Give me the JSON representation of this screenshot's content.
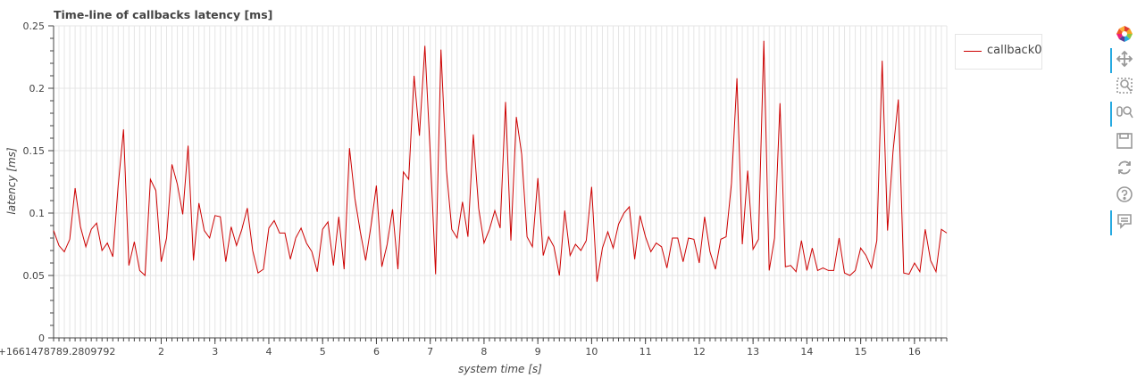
{
  "chart_data": {
    "type": "line",
    "title": "Time-line of callbacks latency [ms]",
    "xlabel": "system time [s]",
    "ylabel": "latency [ms]",
    "xlim": [
      0,
      16.6
    ],
    "ylim": [
      0,
      0.25
    ],
    "x_offset_label": "0+1661478789.2809792",
    "x_ticks": [
      2,
      3,
      4,
      5,
      6,
      7,
      8,
      9,
      10,
      11,
      12,
      13,
      14,
      15,
      16
    ],
    "y_ticks": [
      0,
      0.05,
      0.1,
      0.15,
      0.2,
      0.25
    ],
    "grid": true,
    "legend_position": "outside-right",
    "series": [
      {
        "name": "callback0",
        "color": "#cc0000",
        "x": [
          0,
          0.1,
          0.2,
          0.3,
          0.4,
          0.5,
          0.6,
          0.7,
          0.8,
          0.9,
          1.0,
          1.1,
          1.2,
          1.3,
          1.4,
          1.5,
          1.6,
          1.7,
          1.8,
          1.9,
          2.0,
          2.1,
          2.2,
          2.3,
          2.4,
          2.5,
          2.6,
          2.7,
          2.8,
          2.9,
          3.0,
          3.1,
          3.2,
          3.3,
          3.4,
          3.5,
          3.6,
          3.7,
          3.8,
          3.9,
          4.0,
          4.1,
          4.2,
          4.3,
          4.4,
          4.5,
          4.6,
          4.7,
          4.8,
          4.9,
          5.0,
          5.1,
          5.2,
          5.3,
          5.4,
          5.5,
          5.6,
          5.7,
          5.8,
          5.9,
          6.0,
          6.1,
          6.2,
          6.3,
          6.4,
          6.5,
          6.6,
          6.7,
          6.8,
          6.9,
          7.0,
          7.1,
          7.2,
          7.3,
          7.4,
          7.5,
          7.6,
          7.7,
          7.8,
          7.9,
          8.0,
          8.1,
          8.2,
          8.3,
          8.4,
          8.5,
          8.6,
          8.7,
          8.8,
          8.9,
          9.0,
          9.1,
          9.2,
          9.3,
          9.4,
          9.5,
          9.6,
          9.7,
          9.8,
          9.9,
          10.0,
          10.1,
          10.2,
          10.3,
          10.4,
          10.5,
          10.6,
          10.7,
          10.8,
          10.9,
          11.0,
          11.1,
          11.2,
          11.3,
          11.4,
          11.5,
          11.6,
          11.7,
          11.8,
          11.9,
          12.0,
          12.1,
          12.2,
          12.3,
          12.4,
          12.5,
          12.6,
          12.7,
          12.8,
          12.9,
          13.0,
          13.1,
          13.2,
          13.3,
          13.4,
          13.5,
          13.6,
          13.7,
          13.8,
          13.9,
          14.0,
          14.1,
          14.2,
          14.3,
          14.4,
          14.5,
          14.6,
          14.7,
          14.8,
          14.9,
          15.0,
          15.1,
          15.2,
          15.3,
          15.4,
          15.5,
          15.6,
          15.7,
          15.8,
          15.9,
          16.0,
          16.1,
          16.2,
          16.3,
          16.4,
          16.5,
          16.6
        ],
        "y": [
          0.086,
          0.074,
          0.069,
          0.079,
          0.12,
          0.089,
          0.073,
          0.087,
          0.092,
          0.07,
          0.076,
          0.065,
          0.122,
          0.167,
          0.058,
          0.077,
          0.054,
          0.05,
          0.127,
          0.118,
          0.061,
          0.08,
          0.139,
          0.123,
          0.099,
          0.154,
          0.062,
          0.108,
          0.086,
          0.08,
          0.098,
          0.097,
          0.061,
          0.089,
          0.074,
          0.087,
          0.104,
          0.07,
          0.052,
          0.055,
          0.088,
          0.094,
          0.084,
          0.084,
          0.063,
          0.08,
          0.088,
          0.076,
          0.069,
          0.053,
          0.087,
          0.093,
          0.058,
          0.097,
          0.055,
          0.152,
          0.112,
          0.085,
          0.062,
          0.09,
          0.122,
          0.057,
          0.075,
          0.103,
          0.055,
          0.133,
          0.127,
          0.21,
          0.162,
          0.234,
          0.148,
          0.051,
          0.231,
          0.135,
          0.087,
          0.08,
          0.109,
          0.081,
          0.163,
          0.104,
          0.076,
          0.087,
          0.102,
          0.088,
          0.189,
          0.078,
          0.177,
          0.147,
          0.081,
          0.073,
          0.128,
          0.066,
          0.081,
          0.073,
          0.05,
          0.102,
          0.066,
          0.075,
          0.07,
          0.078,
          0.121,
          0.045,
          0.072,
          0.085,
          0.072,
          0.091,
          0.1,
          0.105,
          0.063,
          0.098,
          0.081,
          0.069,
          0.076,
          0.073,
          0.056,
          0.08,
          0.08,
          0.061,
          0.08,
          0.079,
          0.06,
          0.097,
          0.069,
          0.055,
          0.079,
          0.081,
          0.124,
          0.208,
          0.075,
          0.134,
          0.071,
          0.079,
          0.238,
          0.054,
          0.08,
          0.188,
          0.057,
          0.058,
          0.053,
          0.078,
          0.054,
          0.072,
          0.054,
          0.056,
          0.054,
          0.054,
          0.08,
          0.052,
          0.05,
          0.054,
          0.072,
          0.066,
          0.056,
          0.078,
          0.222,
          0.086,
          0.149,
          0.191,
          0.052,
          0.051,
          0.06,
          0.053,
          0.087,
          0.062,
          0.053,
          0.087,
          0.084
        ]
      }
    ]
  },
  "toolbar": {
    "icons": [
      "bokeh-logo-icon",
      "pan-icon",
      "box-zoom-icon",
      "wheel-zoom-icon",
      "save-icon",
      "reset-icon",
      "help-icon",
      "hover-icon"
    ],
    "accent": "#26aae1"
  }
}
